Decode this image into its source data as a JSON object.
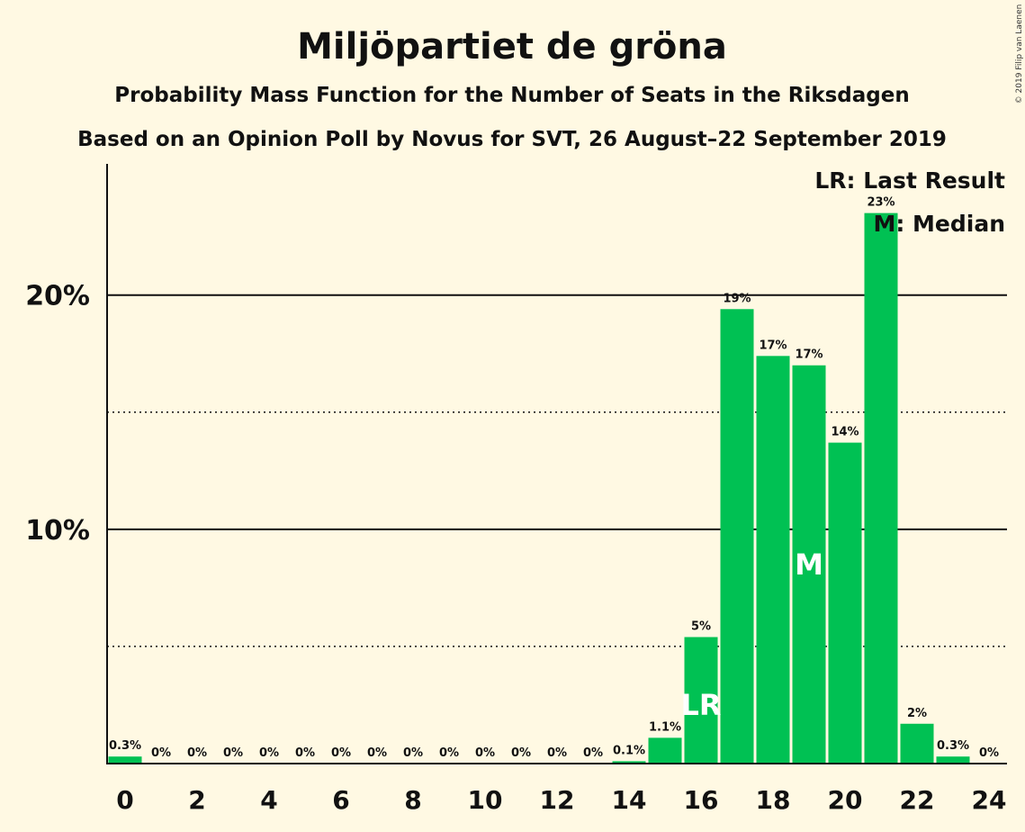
{
  "header": {
    "title": "Miljöpartiet de gröna",
    "subtitle": "Probability Mass Function for the Number of Seats in the Riksdagen",
    "poll_line": "Based on an Opinion Poll by Novus for SVT, 26 August–22 September 2019",
    "credit": "© 2019 Filip van Laenen"
  },
  "legend": {
    "last_result": "LR: Last Result",
    "median": "M: Median"
  },
  "colors": {
    "background": "#fff9e3",
    "bar": "#00c153",
    "text": "#111111"
  },
  "chart_data": {
    "type": "bar",
    "categories": [
      0,
      1,
      2,
      3,
      4,
      5,
      6,
      7,
      8,
      9,
      10,
      11,
      12,
      13,
      14,
      15,
      16,
      17,
      18,
      19,
      20,
      21,
      22,
      23,
      24
    ],
    "values": [
      0.3,
      0,
      0,
      0,
      0,
      0,
      0,
      0,
      0,
      0,
      0,
      0,
      0,
      0,
      0.1,
      1.1,
      5.4,
      19.4,
      17.4,
      17.0,
      13.7,
      23.5,
      1.7,
      0.3,
      0
    ],
    "value_labels": [
      "0.3%",
      "0%",
      "0%",
      "0%",
      "0%",
      "0%",
      "0%",
      "0%",
      "0%",
      "0%",
      "0%",
      "0%",
      "0%",
      "0%",
      "0.1%",
      "1.1%",
      "5%",
      "19%",
      "17%",
      "17%",
      "14%",
      "23%",
      "2%",
      "0.3%",
      "0%"
    ],
    "x_tick_labels": [
      "0",
      "2",
      "4",
      "6",
      "8",
      "10",
      "12",
      "14",
      "16",
      "18",
      "20",
      "22",
      "24"
    ],
    "y_tick_labels": [
      "10%",
      "20%"
    ],
    "ylim": [
      0,
      25.6
    ],
    "solid_gridlines": [
      10,
      20
    ],
    "dotted_gridlines": [
      5,
      15
    ],
    "last_result": {
      "seat": 16,
      "label": "LR"
    },
    "median": {
      "seat": 19,
      "label": "M"
    },
    "legend_position": "top-right",
    "xlabel": "",
    "ylabel": ""
  }
}
